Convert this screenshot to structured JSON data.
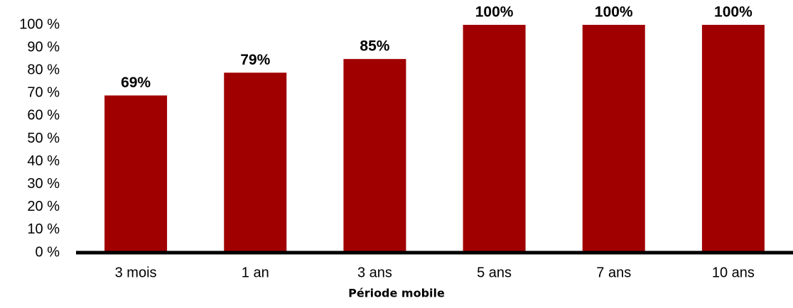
{
  "chart_data": {
    "type": "bar",
    "x_label": "Période mobile",
    "categories": [
      "3 mois",
      "1 an",
      "3 ans",
      "5 ans",
      "7 ans",
      "10 ans"
    ],
    "values": [
      69,
      79,
      85,
      100,
      100,
      100
    ],
    "value_labels": [
      "69%",
      "79%",
      "85%",
      "100%",
      "100%",
      "100%"
    ],
    "color": "#a00000",
    "ylim": [
      0,
      100
    ],
    "yticks": [
      {
        "value": 0,
        "label": "0 %"
      },
      {
        "value": 10,
        "label": "10 %"
      },
      {
        "value": 20,
        "label": "20 %"
      },
      {
        "value": 30,
        "label": "30 %"
      },
      {
        "value": 40,
        "label": "40 %"
      },
      {
        "value": 50,
        "label": "50 %"
      },
      {
        "value": 60,
        "label": "60 %"
      },
      {
        "value": 70,
        "label": "70 %"
      },
      {
        "value": 80,
        "label": "80 %"
      },
      {
        "value": 90,
        "label": "90 %"
      },
      {
        "value": 100,
        "label": "100 %"
      }
    ],
    "grid": false
  }
}
